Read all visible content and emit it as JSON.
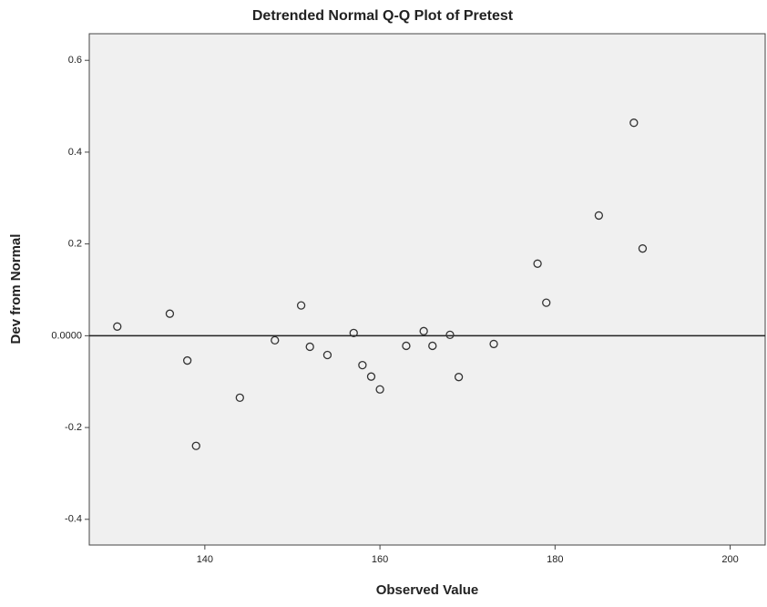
{
  "chart_data": {
    "type": "scatter",
    "title": "Detrended Normal Q-Q Plot of Pretest",
    "x_label": "Observed Value",
    "y_label": "Dev from Normal",
    "x": [
      130,
      136,
      138,
      139,
      144,
      148,
      151,
      152,
      154,
      157,
      158,
      159,
      160,
      163,
      165,
      166,
      168,
      169,
      173,
      178,
      179,
      185,
      189,
      190
    ],
    "values": [
      0.02,
      0.048,
      -0.054,
      -0.24,
      -0.135,
      -0.01,
      0.066,
      -0.024,
      -0.042,
      0.006,
      -0.064,
      -0.089,
      -0.117,
      -0.022,
      0.01,
      -0.022,
      0.002,
      -0.09,
      -0.018,
      0.157,
      0.072,
      0.262,
      0.464,
      0.19
    ],
    "color": "#333333",
    "xlim": [
      126.8,
      204
    ],
    "ylim": [
      -0.456,
      0.658
    ],
    "xticks": [
      140,
      160,
      180,
      200
    ],
    "yticks": [
      0.6,
      0.4,
      0.2,
      {
        "value": 0,
        "label": "0.0000"
      },
      -0.2,
      -0.4
    ]
  }
}
